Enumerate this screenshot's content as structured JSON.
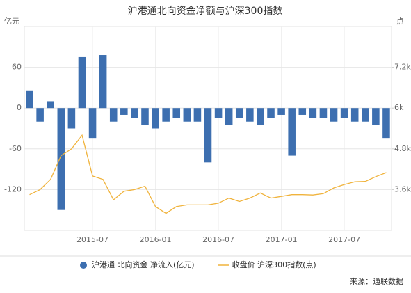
{
  "chart_data": {
    "type": "bar-line",
    "title": "沪港通北向资金净额与沪深300指数",
    "y_unit": "亿元",
    "y2_unit": "点",
    "source": "来源：通联数据",
    "x": [
      "2015-01",
      "2015-02",
      "2015-03",
      "2015-04",
      "2015-05",
      "2015-06",
      "2015-07",
      "2015-08",
      "2015-09",
      "2015-10",
      "2015-11",
      "2015-12",
      "2016-01",
      "2016-02",
      "2016-03",
      "2016-04",
      "2016-05",
      "2016-06",
      "2016-07",
      "2016-08",
      "2016-09",
      "2016-10",
      "2016-11",
      "2016-12",
      "2017-01",
      "2017-02",
      "2017-03",
      "2017-04",
      "2017-05",
      "2017-06",
      "2017-07",
      "2017-08",
      "2017-09",
      "2017-10",
      "2017-11"
    ],
    "xlim": [
      "2015-01",
      "2017-11"
    ],
    "xticks": [
      "2015-07",
      "2016-01",
      "2016-07",
      "2017-01",
      "2017-07"
    ],
    "ylim": [
      -180,
      120
    ],
    "yticks": [
      -120,
      -60,
      0,
      60
    ],
    "y2lim": [
      2400,
      8400
    ],
    "y2ticks": [
      {
        "value": 3600,
        "label": "3.6k"
      },
      {
        "value": 4800,
        "label": "4.8k"
      },
      {
        "value": 6000,
        "label": "6k"
      },
      {
        "value": 7200,
        "label": "7.2k"
      }
    ],
    "grid": true,
    "legend": "bottom",
    "series": [
      {
        "name": "沪港通 北向资金 净流入(亿元)",
        "type": "bar",
        "axis": "y",
        "color": "#3d6fb0",
        "values": [
          25,
          -20,
          10,
          -150,
          -30,
          75,
          -45,
          78,
          -20,
          -10,
          -15,
          -25,
          -30,
          -20,
          -15,
          -20,
          -20,
          -80,
          -15,
          -25,
          -15,
          -20,
          -25,
          -15,
          -10,
          -70,
          -10,
          -15,
          -15,
          -20,
          -15,
          -20,
          -20,
          -25,
          -45
        ]
      },
      {
        "name": "收盘价 沪深300指数(点)",
        "type": "line",
        "axis": "y2",
        "color": "#f0b33c",
        "values": [
          3450,
          3600,
          3900,
          4600,
          4800,
          5200,
          4000,
          3900,
          3300,
          3550,
          3600,
          3700,
          3100,
          2900,
          3100,
          3150,
          3150,
          3150,
          3200,
          3350,
          3250,
          3350,
          3500,
          3350,
          3400,
          3450,
          3450,
          3440,
          3480,
          3650,
          3750,
          3830,
          3840,
          3980,
          4100
        ]
      }
    ]
  }
}
